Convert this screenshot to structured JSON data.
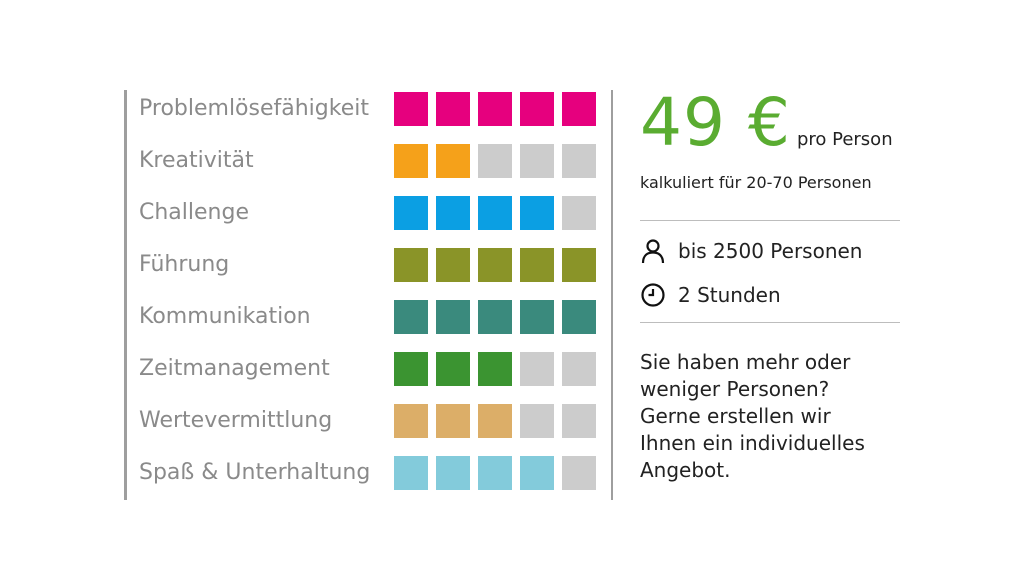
{
  "ratings": [
    {
      "label": "Problemlösefähigkeit",
      "filled": 5,
      "total": 5,
      "color": "#e6007e"
    },
    {
      "label": "Kreativität",
      "filled": 2,
      "total": 5,
      "color": "#f5a11a"
    },
    {
      "label": "Challenge",
      "filled": 4,
      "total": 5,
      "color": "#0b9fe3"
    },
    {
      "label": "Führung",
      "filled": 5,
      "total": 5,
      "color": "#8a9428"
    },
    {
      "label": "Kommunikation",
      "filled": 5,
      "total": 5,
      "color": "#3a8a7d"
    },
    {
      "label": "Zeitmanagement",
      "filled": 3,
      "total": 5,
      "color": "#3b9431"
    },
    {
      "label": "Wertevermittlung",
      "filled": 3,
      "total": 5,
      "color": "#dcae68"
    },
    {
      "label": "Spaß & Unterhaltung",
      "filled": 4,
      "total": 5,
      "color": "#83cbdb"
    }
  ],
  "empty_color": "#cccccc",
  "price": {
    "amount": "49 €",
    "unit": "pro Person",
    "calc_note": "kalkuliert für 20-70 Personen",
    "accent_color": "#5aac31"
  },
  "info": {
    "capacity": {
      "icon": "person-icon",
      "text": "bis 2500 Personen"
    },
    "duration": {
      "icon": "clock-icon",
      "text": "2 Stunden"
    }
  },
  "note_lines": [
    "Sie haben mehr oder",
    "weniger Personen?",
    "Gerne erstellen wir",
    "Ihnen ein individuelles",
    "Angebot."
  ]
}
